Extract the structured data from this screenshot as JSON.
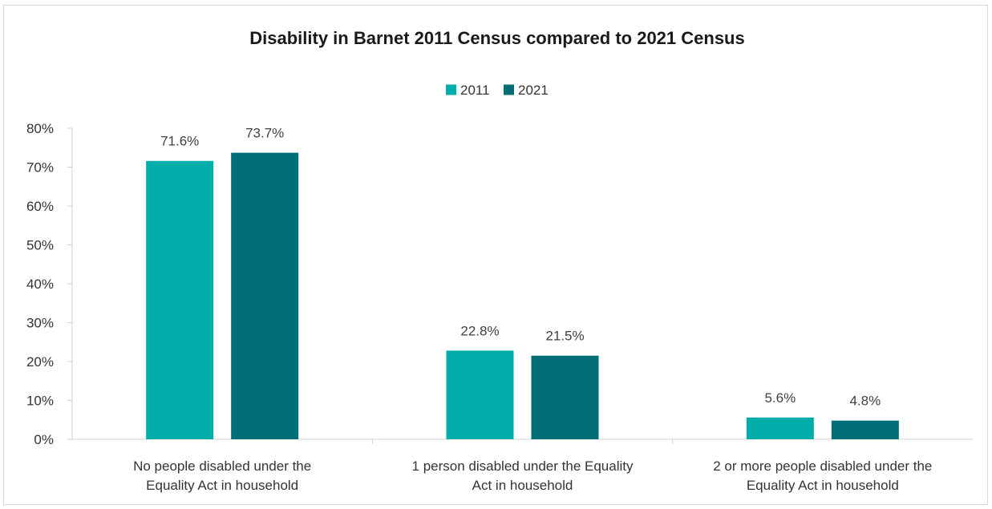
{
  "chart_data": {
    "type": "bar",
    "title": "Disability in Barnet 2011 Census compared to 2021 Census",
    "categories": [
      [
        "No people disabled under the",
        "Equality Act in household"
      ],
      [
        "1 person disabled under the Equality",
        "Act in household"
      ],
      [
        "2 or more people disabled under the",
        "Equality Act in household"
      ]
    ],
    "series": [
      {
        "name": "2011",
        "values": [
          71.6,
          22.8,
          5.6
        ],
        "labels": [
          "71.6%",
          "22.8%",
          "5.6%"
        ],
        "color": "#00ADA9"
      },
      {
        "name": "2021",
        "values": [
          73.7,
          21.5,
          4.8
        ],
        "labels": [
          "73.7%",
          "21.5%",
          "4.8%"
        ],
        "color": "#006E74"
      }
    ],
    "ylim": [
      0,
      80
    ],
    "yticks": [
      "0%",
      "10%",
      "20%",
      "30%",
      "40%",
      "50%",
      "60%",
      "70%",
      "80%"
    ],
    "yticks_values": [
      0,
      10,
      20,
      30,
      40,
      50,
      60,
      70,
      80
    ],
    "legend_position": "top-center",
    "grid": false
  }
}
